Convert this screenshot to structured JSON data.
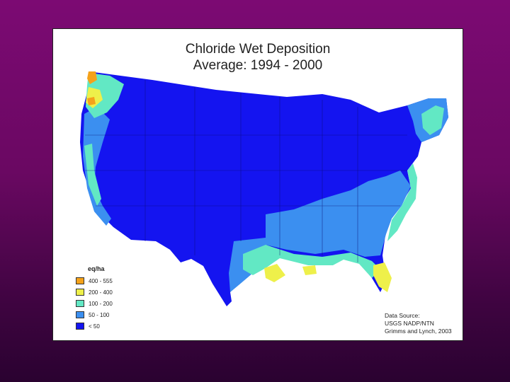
{
  "title_line1": "Chloride Wet Deposition",
  "title_line2": "Average: 1994 - 2000",
  "legend": {
    "title": "eq/ha",
    "items": [
      {
        "label": "400 - 555",
        "color": "#f5a21a"
      },
      {
        "label": "200 - 400",
        "color": "#eef04a"
      },
      {
        "label": "100 - 200",
        "color": "#62e8c4"
      },
      {
        "label": "50 - 100",
        "color": "#3b8ff0"
      },
      {
        "label": "< 50",
        "color": "#1414f0"
      }
    ]
  },
  "source": {
    "line1": "Data Source:",
    "line2": "USGS NADP/NTN",
    "line3": "Grimms and Lynch, 2003"
  }
}
